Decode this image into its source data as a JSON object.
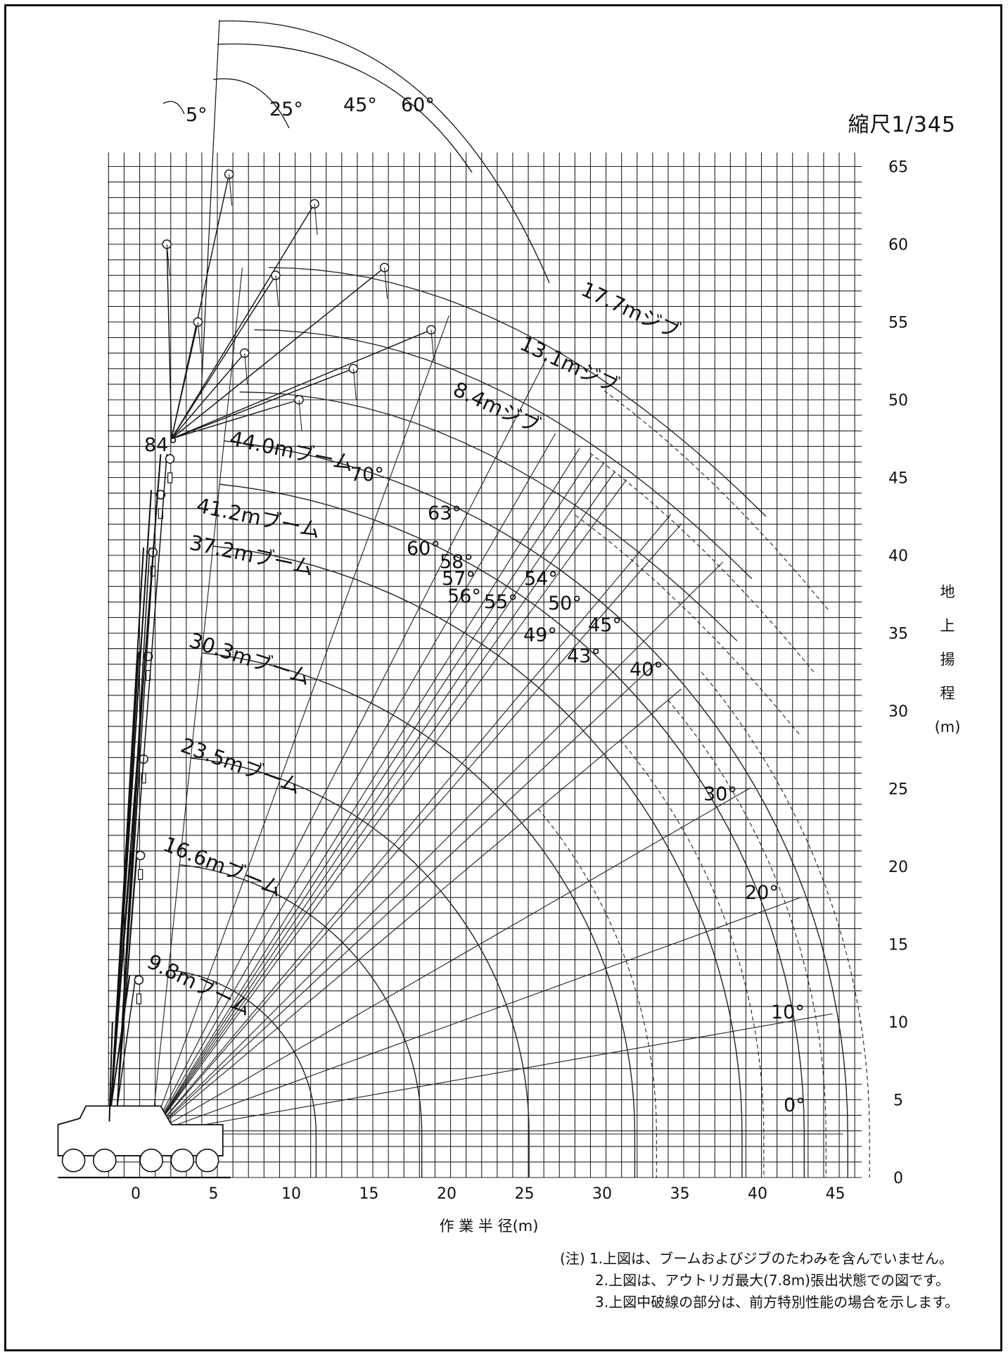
{
  "scale": "縮尺1/345",
  "axes": {
    "x_title": "作 業 半 径(m)",
    "y_title_chars": [
      "地",
      "上",
      "揚",
      "程",
      "(m)"
    ],
    "x_ticks": [
      "0",
      "5",
      "10",
      "15",
      "20",
      "25",
      "30",
      "35",
      "40",
      "45"
    ],
    "y_ticks": [
      "0",
      "5",
      "10",
      "15",
      "20",
      "25",
      "30",
      "35",
      "40",
      "45",
      "50",
      "55",
      "60",
      "65"
    ],
    "x_range": [
      -4.5,
      48
    ],
    "y_range": [
      0,
      66
    ]
  },
  "boom_labels": [
    {
      "text": "44.0mブーム",
      "length": 44.0
    },
    {
      "text": "41.2mブーム",
      "length": 41.2
    },
    {
      "text": "37.2mブーム",
      "length": 37.2
    },
    {
      "text": "30.3mブーム",
      "length": 30.3
    },
    {
      "text": "23.5mブーム",
      "length": 23.5
    },
    {
      "text": "16.6mブーム",
      "length": 16.6
    },
    {
      "text": "9.8mブーム",
      "length": 9.8
    }
  ],
  "jib_labels": [
    {
      "text": "17.7mジブ",
      "length": 17.7
    },
    {
      "text": "13.1mジブ",
      "length": 13.1
    },
    {
      "text": "8.4mジブ",
      "length": 8.4
    }
  ],
  "boom_angle_labels": [
    "84°",
    "70°",
    "63°",
    "60°",
    "58°",
    "57°",
    "56°",
    "55°",
    "54°",
    "50°",
    "49°",
    "45°",
    "43°",
    "40°",
    "30°",
    "20°",
    "10°",
    "0°"
  ],
  "jib_offset_labels": [
    "5°",
    "25°",
    "45°",
    "60°"
  ],
  "notes": [
    "(注) 1.上図は、ブームおよびジブのたわみを含んでいません。",
    "2.上図は、アウトリガ最大(7.8m)張出状態での図です。",
    "3.上図中破線の部分は、前方特別性能の場合を示します。"
  ]
}
